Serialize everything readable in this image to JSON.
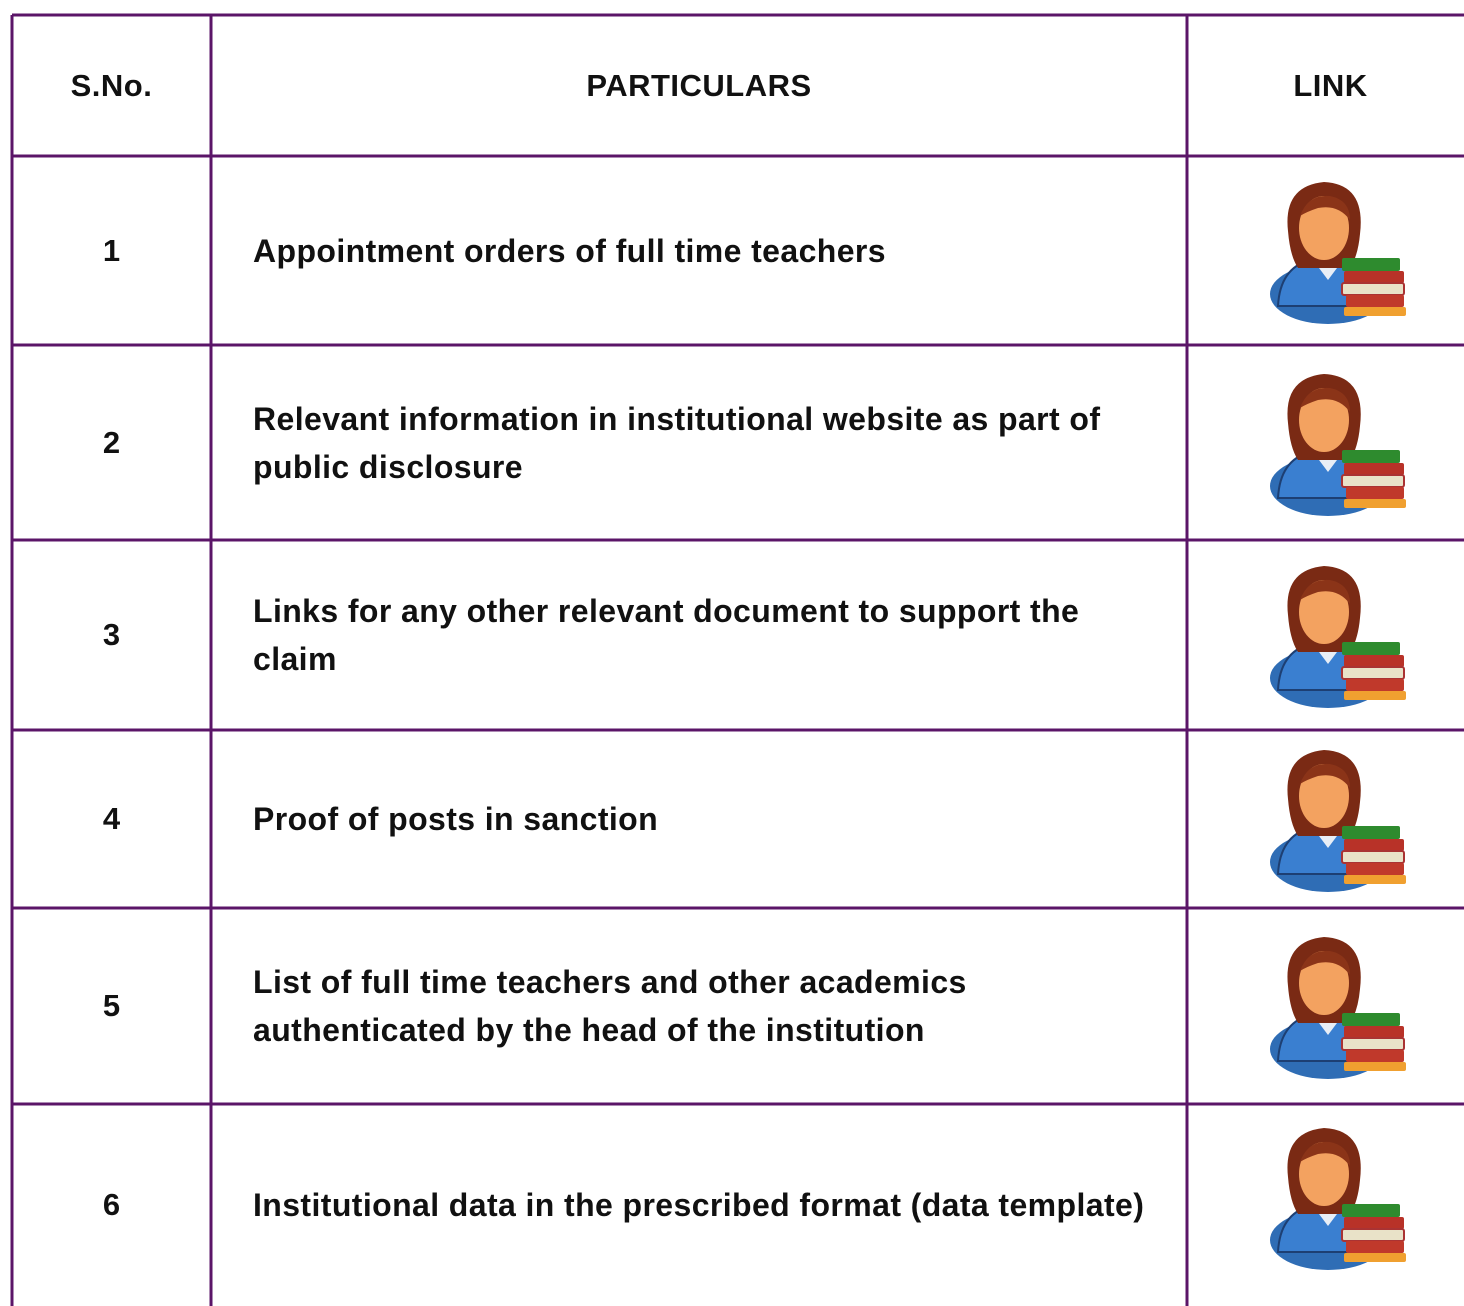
{
  "table": {
    "header": [
      "S.No.",
      "PARTICULARS",
      "LINK"
    ],
    "rows": [
      [
        "1",
        "Appointment orders of full time teachers"
      ],
      [
        "2",
        "Relevant information in institutional website as part of public disclosure"
      ],
      [
        "3",
        "Links for any other relevant document to support the claim"
      ],
      [
        "4",
        "Proof of posts in sanction"
      ],
      [
        "5",
        "List of full time teachers and other academics authenticated by the head of the institution"
      ],
      [
        "6",
        "Institutional data in the prescribed format (data template)"
      ]
    ]
  }
}
